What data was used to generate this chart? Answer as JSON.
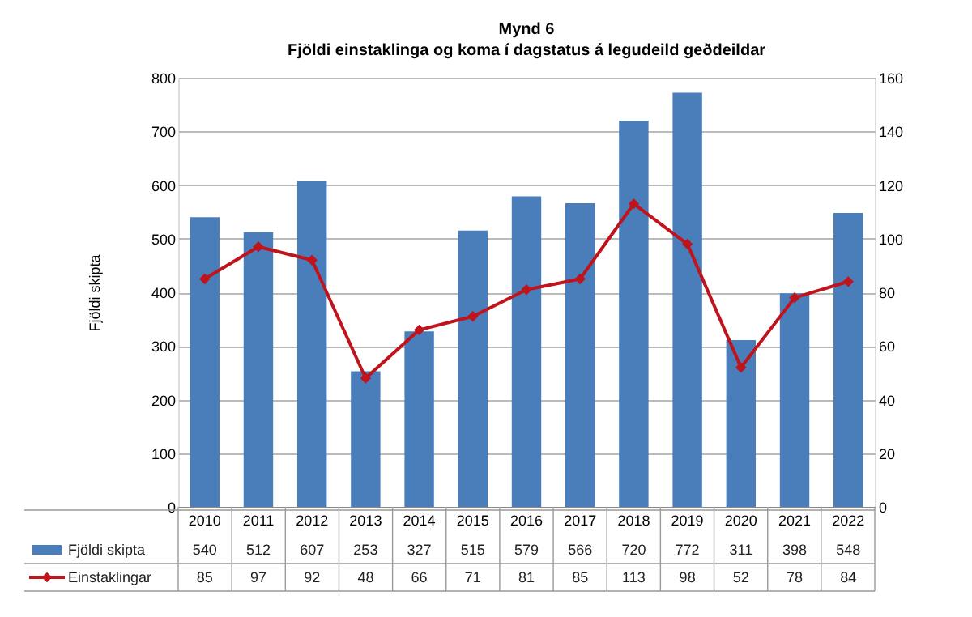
{
  "chart_data": {
    "type": "bar",
    "title": "Mynd 6",
    "subtitle": "Fjöldi einstaklinga og koma í dagstatus á legudeild geðdeildar",
    "ylabel": "Fjöldi skipta",
    "categories": [
      "2010",
      "2011",
      "2012",
      "2013",
      "2014",
      "2015",
      "2016",
      "2017",
      "2018",
      "2019",
      "2020",
      "2021",
      "2022"
    ],
    "series": [
      {
        "name": "Fjöldi skipta",
        "color": "#4a7ebb",
        "values": [
          540,
          512,
          607,
          253,
          327,
          515,
          579,
          566,
          720,
          772,
          311,
          398,
          548
        ]
      },
      {
        "name": "Einstaklingar",
        "type": "line",
        "axis": "y2",
        "color": "#c0141c",
        "marker": "diamond",
        "values": [
          85,
          97,
          92,
          48,
          66,
          71,
          81,
          85,
          113,
          98,
          52,
          78,
          84
        ]
      }
    ],
    "ylim": [
      0,
      800
    ],
    "yticks": [
      0,
      100,
      200,
      300,
      400,
      500,
      600,
      700,
      800
    ],
    "y2lim": [
      0,
      160
    ],
    "y2ticks": [
      0,
      20,
      40,
      60,
      80,
      100,
      120,
      140,
      160
    ],
    "grid": "y",
    "legend": "bottom",
    "data_labels": true
  }
}
